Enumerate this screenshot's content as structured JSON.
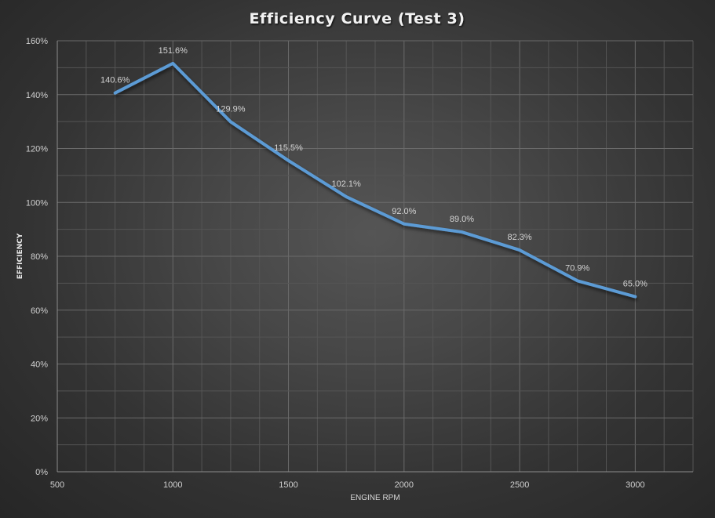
{
  "chart_data": {
    "type": "line",
    "title": "Efficiency Curve (Test 3)",
    "xlabel": "ENGINE RPM",
    "ylabel": "EFFICIENCY",
    "xlim": [
      500,
      3250
    ],
    "ylim": [
      0,
      160
    ],
    "x_ticks": [
      500,
      1000,
      1500,
      2000,
      2500,
      3000
    ],
    "x_tick_labels": [
      "500",
      "1000",
      "1500",
      "2000",
      "2500",
      "3000"
    ],
    "x_minor_step": 125,
    "y_ticks": [
      0,
      20,
      40,
      60,
      80,
      100,
      120,
      140,
      160
    ],
    "y_tick_labels": [
      "0%",
      "20%",
      "40%",
      "60%",
      "80%",
      "100%",
      "120%",
      "140%",
      "160%"
    ],
    "y_minor_step": 10,
    "grid": true,
    "legend": "none",
    "series": [
      {
        "name": "Efficiency",
        "color": "#5b9bd5",
        "x": [
          750,
          1000,
          1250,
          1500,
          1750,
          2000,
          2250,
          2500,
          2750,
          3000
        ],
        "values": [
          140.6,
          151.6,
          129.9,
          115.5,
          102.1,
          92.0,
          89.0,
          82.3,
          70.9,
          65.0
        ],
        "labels": [
          "140.6%",
          "151.6%",
          "129.9%",
          "115.5%",
          "102.1%",
          "92.0%",
          "89.0%",
          "82.3%",
          "70.9%",
          "65.0%"
        ]
      }
    ]
  }
}
